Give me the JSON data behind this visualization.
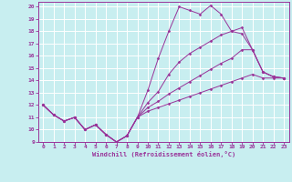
{
  "bg_color": "#c8eef0",
  "grid_color": "#ffffff",
  "line_color": "#993399",
  "xlabel": "Windchill (Refroidissement éolien,°C)",
  "xlim": [
    -0.5,
    23.5
  ],
  "ylim": [
    9,
    20.4
  ],
  "xticks": [
    0,
    1,
    2,
    3,
    4,
    5,
    6,
    7,
    8,
    9,
    10,
    11,
    12,
    13,
    14,
    15,
    16,
    17,
    18,
    19,
    20,
    21,
    22,
    23
  ],
  "yticks": [
    9,
    10,
    11,
    12,
    13,
    14,
    15,
    16,
    17,
    18,
    19,
    20
  ],
  "series": [
    {
      "x": [
        0,
        1,
        2,
        3,
        4,
        5,
        6,
        7,
        8,
        9,
        10,
        11,
        12,
        13,
        14,
        15,
        16,
        17,
        18,
        19,
        20,
        21,
        22,
        23
      ],
      "y": [
        12.0,
        11.2,
        10.7,
        11.0,
        10.0,
        10.4,
        9.6,
        9.0,
        9.5,
        11.0,
        13.2,
        15.8,
        18.0,
        20.0,
        19.7,
        19.4,
        20.1,
        19.4,
        18.0,
        17.8,
        16.5,
        14.7,
        14.3,
        14.2
      ]
    },
    {
      "x": [
        0,
        1,
        2,
        3,
        4,
        5,
        6,
        7,
        8,
        9,
        10,
        11,
        12,
        13,
        14,
        15,
        16,
        17,
        18,
        19,
        20,
        21,
        22,
        23
      ],
      "y": [
        12.0,
        11.2,
        10.7,
        11.0,
        10.0,
        10.4,
        9.6,
        9.0,
        9.5,
        11.0,
        12.2,
        13.1,
        14.5,
        15.5,
        16.2,
        16.7,
        17.2,
        17.7,
        18.0,
        18.3,
        16.5,
        14.7,
        14.3,
        14.2
      ]
    },
    {
      "x": [
        0,
        1,
        2,
        3,
        4,
        5,
        6,
        7,
        8,
        9,
        10,
        11,
        12,
        13,
        14,
        15,
        16,
        17,
        18,
        19,
        20,
        21,
        22,
        23
      ],
      "y": [
        12.0,
        11.2,
        10.7,
        11.0,
        10.0,
        10.4,
        9.6,
        9.0,
        9.5,
        11.0,
        11.8,
        12.3,
        12.9,
        13.4,
        13.9,
        14.4,
        14.9,
        15.4,
        15.8,
        16.5,
        16.5,
        14.7,
        14.3,
        14.2
      ]
    },
    {
      "x": [
        0,
        1,
        2,
        3,
        4,
        5,
        6,
        7,
        8,
        9,
        10,
        11,
        12,
        13,
        14,
        15,
        16,
        17,
        18,
        19,
        20,
        21,
        22,
        23
      ],
      "y": [
        12.0,
        11.2,
        10.7,
        11.0,
        10.0,
        10.4,
        9.6,
        9.0,
        9.5,
        11.0,
        11.5,
        11.8,
        12.1,
        12.4,
        12.7,
        13.0,
        13.3,
        13.6,
        13.9,
        14.2,
        14.5,
        14.2,
        14.2,
        14.2
      ]
    }
  ]
}
